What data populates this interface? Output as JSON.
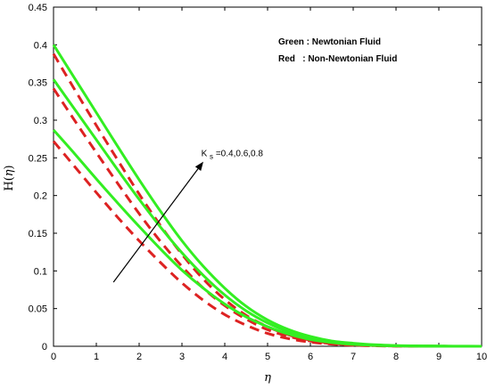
{
  "chart_data": {
    "type": "line",
    "xlabel": "η",
    "ylabel_main": "H(",
    "ylabel_var": "η",
    "ylabel_close": ")",
    "xlim": [
      0,
      10
    ],
    "ylim": [
      0,
      0.45
    ],
    "xticks": [
      "0",
      "1",
      "2",
      "3",
      "4",
      "5",
      "6",
      "7",
      "8",
      "9",
      "10"
    ],
    "yticks": [
      "0",
      "0.05",
      "0.1",
      "0.15",
      "0.2",
      "0.25",
      "0.3",
      "0.35",
      "0.4",
      "0.45"
    ],
    "grid": false,
    "notes": {
      "green": "Green : Newtonian Fluid",
      "red": "Red   : Non-Newtonian Fluid"
    },
    "annotation": {
      "k": "K",
      "sub": "s",
      "values": "=0.4,0.6,0.8",
      "arrow_from": [
        1.4,
        0.085
      ],
      "arrow_to": [
        3.5,
        0.245
      ],
      "label_at": [
        3.45,
        0.252
      ]
    },
    "colors": {
      "green": "#33ee22",
      "red": "#dd2222"
    },
    "series": [
      {
        "color": "green",
        "style": "solid",
        "x": [
          0,
          0.5,
          1,
          1.5,
          2,
          2.5,
          3,
          3.5,
          4,
          4.5,
          5,
          5.5,
          6,
          6.5,
          7,
          7.5,
          8,
          8.5,
          9,
          9.5,
          10
        ],
        "values": [
          0.4,
          0.355,
          0.31,
          0.265,
          0.221,
          0.179,
          0.14,
          0.106,
          0.077,
          0.053,
          0.035,
          0.022,
          0.013,
          0.007,
          0.004,
          0.002,
          0.001,
          0.0005,
          0.0002,
          0.0001,
          0
        ]
      },
      {
        "color": "green",
        "style": "solid",
        "x": [
          0,
          0.5,
          1,
          1.5,
          2,
          2.5,
          3,
          3.5,
          4,
          4.5,
          5,
          5.5,
          6,
          6.5,
          7,
          7.5,
          8,
          8.5,
          9,
          9.5,
          10
        ],
        "values": [
          0.354,
          0.314,
          0.274,
          0.234,
          0.195,
          0.158,
          0.124,
          0.094,
          0.068,
          0.047,
          0.031,
          0.019,
          0.011,
          0.006,
          0.003,
          0.0015,
          0.0007,
          0.0003,
          0.0001,
          0,
          0
        ]
      },
      {
        "color": "green",
        "style": "solid",
        "x": [
          0,
          0.5,
          1,
          1.5,
          2,
          2.5,
          3,
          3.5,
          4,
          4.5,
          5,
          5.5,
          6,
          6.5,
          7,
          7.5,
          8,
          8.5,
          9,
          9.5,
          10
        ],
        "values": [
          0.287,
          0.255,
          0.222,
          0.19,
          0.159,
          0.129,
          0.101,
          0.077,
          0.056,
          0.039,
          0.026,
          0.016,
          0.009,
          0.005,
          0.0025,
          0.0012,
          0.0005,
          0.0002,
          0.0001,
          0,
          0
        ]
      },
      {
        "color": "red",
        "style": "dashed",
        "x": [
          0,
          0.5,
          1,
          1.5,
          2,
          2.5,
          3,
          3.5,
          4,
          4.5,
          5,
          5.5,
          6,
          6.5,
          7,
          7.5,
          8,
          8.5,
          9,
          9.5,
          10
        ],
        "values": [
          0.388,
          0.34,
          0.293,
          0.247,
          0.202,
          0.16,
          0.122,
          0.089,
          0.062,
          0.041,
          0.026,
          0.015,
          0.008,
          0.004,
          0.002,
          0.001,
          0.0004,
          0.0002,
          0.0001,
          0,
          0
        ]
      },
      {
        "color": "red",
        "style": "dashed",
        "x": [
          0,
          0.5,
          1,
          1.5,
          2,
          2.5,
          3,
          3.5,
          4,
          4.5,
          5,
          5.5,
          6,
          6.5,
          7,
          7.5,
          8,
          8.5,
          9,
          9.5,
          10
        ],
        "values": [
          0.342,
          0.299,
          0.257,
          0.216,
          0.176,
          0.139,
          0.106,
          0.077,
          0.054,
          0.036,
          0.022,
          0.013,
          0.007,
          0.0035,
          0.0017,
          0.0008,
          0.0003,
          0.0001,
          0,
          0,
          0
        ]
      },
      {
        "color": "red",
        "style": "dashed",
        "x": [
          0,
          0.5,
          1,
          1.5,
          2,
          2.5,
          3,
          3.5,
          4,
          4.5,
          5,
          5.5,
          6,
          6.5,
          7,
          7.5,
          8,
          8.5,
          9,
          9.5,
          10
        ],
        "values": [
          0.272,
          0.238,
          0.204,
          0.171,
          0.14,
          0.111,
          0.084,
          0.061,
          0.042,
          0.028,
          0.017,
          0.01,
          0.0055,
          0.0028,
          0.0013,
          0.0006,
          0.0002,
          0.0001,
          0,
          0,
          0
        ]
      }
    ]
  }
}
